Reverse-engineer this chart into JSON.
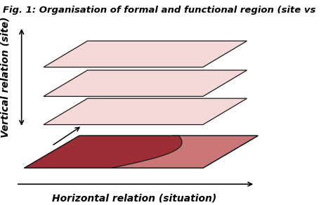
{
  "title": "Fig. 1: Organisation of formal and functional region (site vs",
  "xlabel": "Horizontal relation (situation)",
  "ylabel": "Vertical relation (site)",
  "bg_color": "#ffffff",
  "layer_fill": "#f5d8d8",
  "layer_edge": "#1a1a1a",
  "bottom_fill_light": "#f0c8c8",
  "bottom_fill_medium": "#cc7777",
  "bottom_fill_dark": "#9b2d35",
  "title_fontsize": 9.5,
  "label_fontsize": 10
}
